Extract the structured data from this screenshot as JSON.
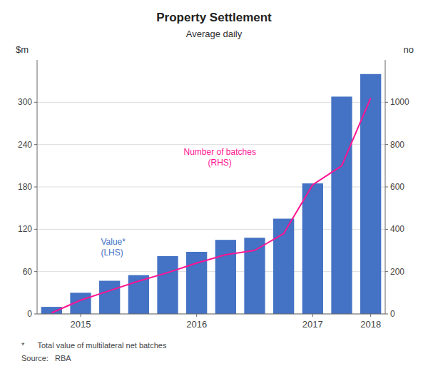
{
  "chart_data": {
    "type": "bar",
    "title": "Property Settlement",
    "subtitle": "Average daily",
    "y_label": "$m",
    "y2_label": "no",
    "footnote": "*      Total value of multilateral net batches",
    "source": "Source:   RBA",
    "categories": [
      null,
      "2015",
      null,
      null,
      null,
      "2016",
      null,
      null,
      null,
      "2017",
      null,
      "2018"
    ],
    "series": [
      {
        "type": "bar",
        "color": "#4472C4",
        "values": [
          10,
          30,
          47,
          55,
          82,
          88,
          105,
          108,
          135,
          185,
          308,
          340
        ]
      },
      {
        "type": "line",
        "color": "#FF1493",
        "axis": "y2",
        "values": [
          5,
          65,
          110,
          155,
          195,
          240,
          280,
          300,
          380,
          610,
          700,
          1020
        ]
      }
    ],
    "annotations": [
      {
        "text": "Value*\n(LHS)",
        "color": "#4472C4"
      },
      {
        "text": "Number of batches\n(RHS)",
        "color": "#FF1493"
      }
    ],
    "ylim": [
      0,
      360
    ],
    "yticks": [
      0,
      60,
      120,
      180,
      240,
      300
    ],
    "y2lim": [
      0,
      1200
    ],
    "y2ticks": [
      0,
      200,
      400,
      600,
      800,
      1000
    ],
    "grid": true
  }
}
